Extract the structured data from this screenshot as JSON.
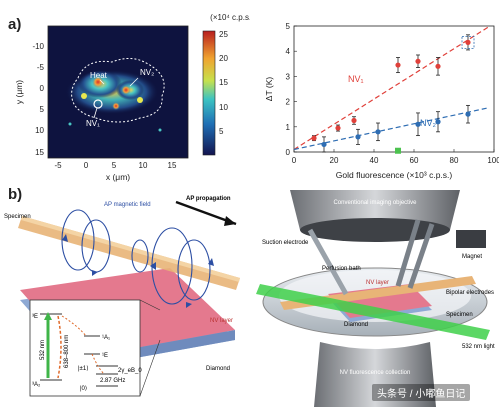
{
  "figure": {
    "panel_a_label": "a)",
    "panel_b_label": "b)",
    "watermark": "头条号 / 小嘟鱼日记"
  },
  "heatmap": {
    "colorbar_label": "(×10⁴ c.p.s.)",
    "colorbar_ticks": [
      "25",
      "20",
      "15",
      "10",
      "5"
    ],
    "y_ticks": [
      "-10",
      "-5",
      "0",
      "5",
      "10",
      "15"
    ],
    "x_ticks": [
      "-5",
      "0",
      "5",
      "10",
      "15"
    ],
    "x_label": "x (μm)",
    "y_label": "y (μm)",
    "label_heat": "Heat",
    "label_nv1": "NV₁",
    "label_nv2": "NV₂"
  },
  "chart_data": {
    "type": "scatter",
    "xlabel": "Gold fluorescence (×10³ c.p.s.)",
    "ylabel": "ΔT (K)",
    "xlim": [
      0,
      100
    ],
    "ylim": [
      0,
      5
    ],
    "x_ticks": [
      "0",
      "20",
      "40",
      "60",
      "80",
      "100"
    ],
    "y_ticks": [
      "0",
      "1",
      "2",
      "3",
      "4",
      "5"
    ],
    "series": [
      {
        "name": "NV₁",
        "color": "#e0403a",
        "points": [
          [
            10,
            0.55
          ],
          [
            22,
            0.95
          ],
          [
            30,
            1.25
          ],
          [
            52,
            3.45
          ],
          [
            62,
            3.6
          ],
          [
            72,
            3.4
          ],
          [
            87,
            4.35
          ]
        ],
        "err": [
          0.1,
          0.12,
          0.15,
          0.3,
          0.25,
          0.35,
          0.3
        ]
      },
      {
        "name": "NV₂",
        "color": "#2e6db3",
        "points": [
          [
            15,
            0.3
          ],
          [
            32,
            0.6
          ],
          [
            42,
            0.8
          ],
          [
            62,
            1.1
          ],
          [
            72,
            1.2
          ],
          [
            87,
            1.5
          ]
        ],
        "err": [
          0.3,
          0.3,
          0.35,
          0.45,
          0.4,
          0.35
        ]
      }
    ],
    "fit_lines": [
      {
        "series": "NV₁",
        "from": [
          0,
          0.1
        ],
        "to": [
          97,
          4.95
        ]
      },
      {
        "series": "NV₂",
        "from": [
          0,
          0.1
        ],
        "to": [
          97,
          1.75
        ]
      }
    ],
    "marker_square": [
      52,
      0.05
    ]
  },
  "schematic_left": {
    "ap_magnetic_field": "AP magnetic field",
    "ap_propagation": "AP propagation",
    "specimen": "Specimen",
    "nv_layer": "NV layer",
    "diamond": "Diamond",
    "inset": {
      "green_laser": "532 nm",
      "red_emission": "638–800 nm",
      "level_3e": "³E",
      "level_3a2": "³A₂",
      "level_1a1": "¹A₁",
      "level_1e": "¹E",
      "pm1": "|±1⟩",
      "zero": "|0⟩",
      "split": "2.87 GHz",
      "split2": "2γ_eB_0"
    }
  },
  "schematic_right": {
    "objective": "Conventional imaging objective",
    "suction": "Suction electrode",
    "magnet": "Magnet",
    "bath": "Perfusion bath",
    "bipolar": "Bipolar electrodes",
    "nv_layer": "NV layer",
    "specimen": "Specimen",
    "diamond": "Diamond",
    "laser": "532 nm light",
    "collection": "NV fluorescence collection"
  }
}
